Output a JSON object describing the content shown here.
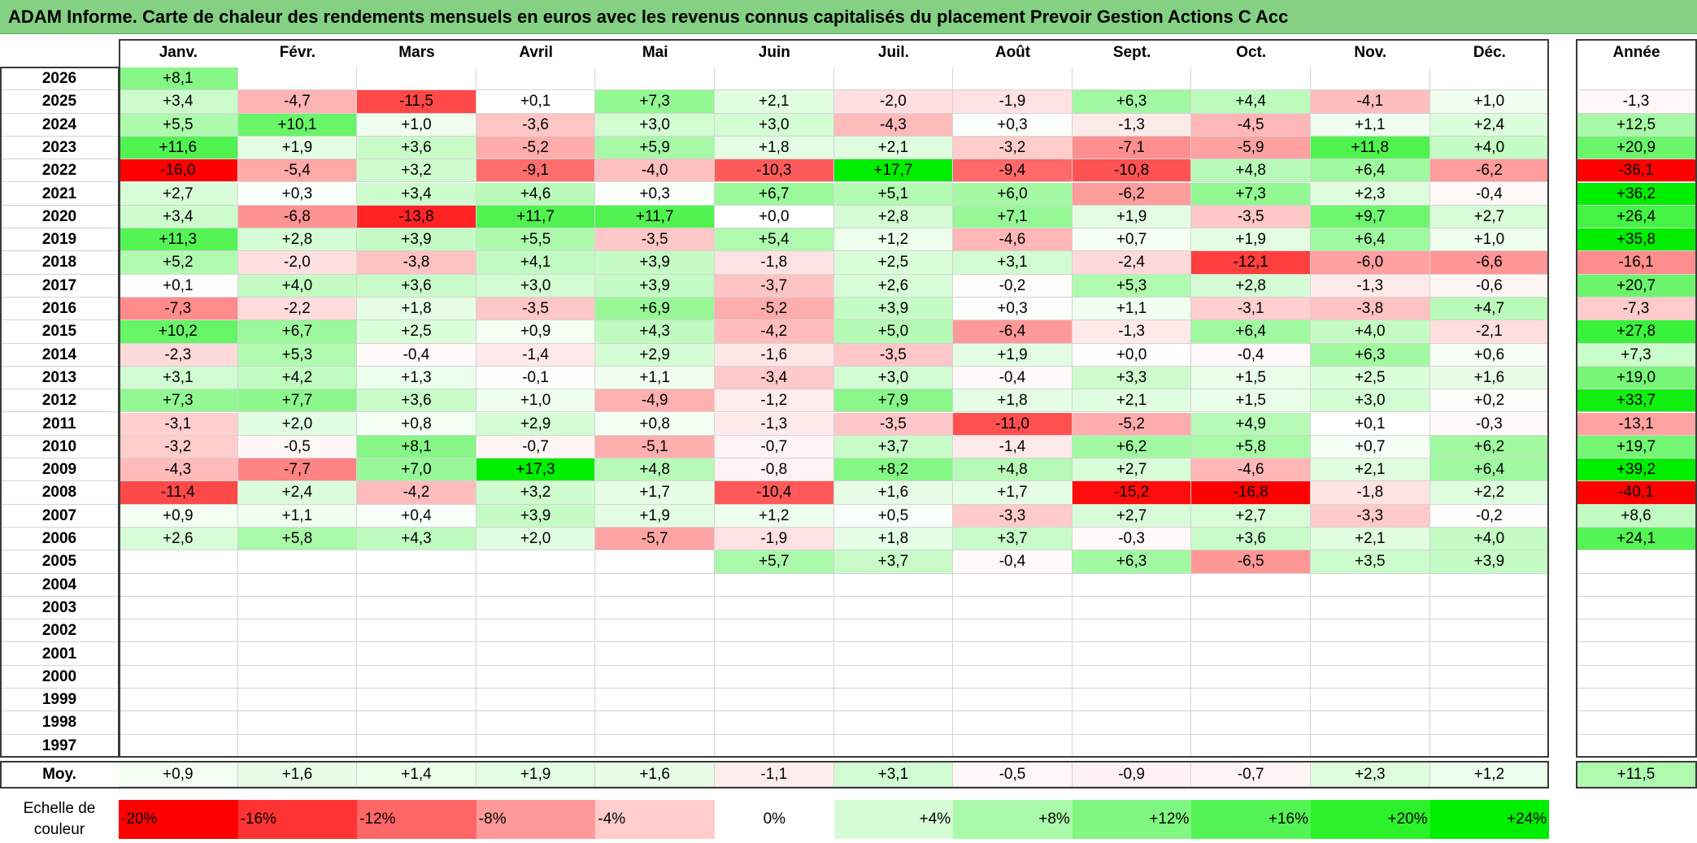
{
  "title": "ADAM Informe. Carte de chaleur des rendements mensuels en euros avec les revenus connus capitalisés du placement Prevoir Gestion Actions C Acc",
  "chart_data": {
    "type": "heatmap",
    "title": "ADAM Informe. Carte de chaleur des rendements mensuels en euros avec les revenus connus capitalisés du placement Prevoir Gestion Actions C Acc",
    "months": [
      "Janv.",
      "Févr.",
      "Mars",
      "Avril",
      "Mai",
      "Juin",
      "Juil.",
      "Août",
      "Sept.",
      "Oct.",
      "Nov.",
      "Déc."
    ],
    "year_header": "Année",
    "rows": [
      {
        "year": "2026",
        "values": [
          "+8,1",
          "",
          "",
          "",
          "",
          "",
          "",
          "",
          "",
          "",
          "",
          ""
        ],
        "annual": ""
      },
      {
        "year": "2025",
        "values": [
          "+3,4",
          "-4,7",
          "-11,5",
          "+0,1",
          "+7,3",
          "+2,1",
          "-2,0",
          "-1,9",
          "+6,3",
          "+4,4",
          "-4,1",
          "+1,0"
        ],
        "annual": "-1,3"
      },
      {
        "year": "2024",
        "values": [
          "+5,5",
          "+10,1",
          "+1,0",
          "-3,6",
          "+3,0",
          "+3,0",
          "-4,3",
          "+0,3",
          "-1,3",
          "-4,5",
          "+1,1",
          "+2,4"
        ],
        "annual": "+12,5"
      },
      {
        "year": "2023",
        "values": [
          "+11,6",
          "+1,9",
          "+3,6",
          "-5,2",
          "+5,9",
          "+1,8",
          "+2,1",
          "-3,2",
          "-7,1",
          "-5,9",
          "+11,8",
          "+4,0"
        ],
        "annual": "+20,9"
      },
      {
        "year": "2022",
        "values": [
          "-16,0",
          "-5,4",
          "+3,2",
          "-9,1",
          "-4,0",
          "-10,3",
          "+17,7",
          "-9,4",
          "-10,8",
          "+4,8",
          "+6,4",
          "-6,2"
        ],
        "annual": "-36,1"
      },
      {
        "year": "2021",
        "values": [
          "+2,7",
          "+0,3",
          "+3,4",
          "+4,6",
          "+0,3",
          "+6,7",
          "+5,1",
          "+6,0",
          "-6,2",
          "+7,3",
          "+2,3",
          "-0,4"
        ],
        "annual": "+36,2"
      },
      {
        "year": "2020",
        "values": [
          "+3,4",
          "-6,8",
          "-13,8",
          "+11,7",
          "+11,7",
          "+0,0",
          "+2,8",
          "+7,1",
          "+1,9",
          "-3,5",
          "+9,7",
          "+2,7"
        ],
        "annual": "+26,4"
      },
      {
        "year": "2019",
        "values": [
          "+11,3",
          "+2,8",
          "+3,9",
          "+5,5",
          "-3,5",
          "+5,4",
          "+1,2",
          "-4,6",
          "+0,7",
          "+1,9",
          "+6,4",
          "+1,0"
        ],
        "annual": "+35,8"
      },
      {
        "year": "2018",
        "values": [
          "+5,2",
          "-2,0",
          "-3,8",
          "+4,1",
          "+3,9",
          "-1,8",
          "+2,5",
          "+3,1",
          "-2,4",
          "-12,1",
          "-6,0",
          "-6,6"
        ],
        "annual": "-16,1"
      },
      {
        "year": "2017",
        "values": [
          "+0,1",
          "+4,0",
          "+3,6",
          "+3,0",
          "+3,9",
          "-3,7",
          "+2,6",
          "-0,2",
          "+5,3",
          "+2,8",
          "-1,3",
          "-0,6"
        ],
        "annual": "+20,7"
      },
      {
        "year": "2016",
        "values": [
          "-7,3",
          "-2,2",
          "+1,8",
          "-3,5",
          "+6,9",
          "-5,2",
          "+3,9",
          "+0,3",
          "+1,1",
          "-3,1",
          "-3,8",
          "+4,7"
        ],
        "annual": "-7,3"
      },
      {
        "year": "2015",
        "values": [
          "+10,2",
          "+6,7",
          "+2,5",
          "+0,9",
          "+4,3",
          "-4,2",
          "+5,0",
          "-6,4",
          "-1,3",
          "+6,4",
          "+4,0",
          "-2,1"
        ],
        "annual": "+27,8"
      },
      {
        "year": "2014",
        "values": [
          "-2,3",
          "+5,3",
          "-0,4",
          "-1,4",
          "+2,9",
          "-1,6",
          "-3,5",
          "+1,9",
          "+0,0",
          "-0,4",
          "+6,3",
          "+0,6"
        ],
        "annual": "+7,3"
      },
      {
        "year": "2013",
        "values": [
          "+3,1",
          "+4,2",
          "+1,3",
          "-0,1",
          "+1,1",
          "-3,4",
          "+3,0",
          "-0,4",
          "+3,3",
          "+1,5",
          "+2,5",
          "+1,6"
        ],
        "annual": "+19,0"
      },
      {
        "year": "2012",
        "values": [
          "+7,3",
          "+7,7",
          "+3,6",
          "+1,0",
          "-4,9",
          "-1,2",
          "+7,9",
          "+1,8",
          "+2,1",
          "+1,5",
          "+3,0",
          "+0,2"
        ],
        "annual": "+33,7"
      },
      {
        "year": "2011",
        "values": [
          "-3,1",
          "+2,0",
          "+0,8",
          "+2,9",
          "+0,8",
          "-1,3",
          "-3,5",
          "-11,0",
          "-5,2",
          "+4,9",
          "+0,1",
          "-0,3"
        ],
        "annual": "-13,1"
      },
      {
        "year": "2010",
        "values": [
          "-3,2",
          "-0,5",
          "+8,1",
          "-0,7",
          "-5,1",
          "-0,7",
          "+3,7",
          "-1,4",
          "+6,2",
          "+5,8",
          "+0,7",
          "+6,2"
        ],
        "annual": "+19,7"
      },
      {
        "year": "2009",
        "values": [
          "-4,3",
          "-7,7",
          "+7,0",
          "+17,3",
          "+4,8",
          "-0,8",
          "+8,2",
          "+4,8",
          "+2,7",
          "-4,6",
          "+2,1",
          "+6,4"
        ],
        "annual": "+39,2"
      },
      {
        "year": "2008",
        "values": [
          "-11,4",
          "+2,4",
          "-4,2",
          "+3,2",
          "+1,7",
          "-10,4",
          "+1,6",
          "+1,7",
          "-15,2",
          "-16,8",
          "-1,8",
          "+2,2"
        ],
        "annual": "-40,1"
      },
      {
        "year": "2007",
        "values": [
          "+0,9",
          "+1,1",
          "+0,4",
          "+3,9",
          "+1,9",
          "+1,2",
          "+0,5",
          "-3,3",
          "+2,7",
          "+2,7",
          "-3,3",
          "-0,2"
        ],
        "annual": "+8,6"
      },
      {
        "year": "2006",
        "values": [
          "+2,6",
          "+5,8",
          "+4,3",
          "+2,0",
          "-5,7",
          "-1,9",
          "+1,8",
          "+3,7",
          "-0,3",
          "+3,6",
          "+2,1",
          "+4,0"
        ],
        "annual": "+24,1"
      },
      {
        "year": "2005",
        "values": [
          "",
          "",
          "",
          "",
          "",
          "+5,7",
          "+3,7",
          "-0,4",
          "+6,3",
          "-6,5",
          "+3,5",
          "+3,9"
        ],
        "annual": ""
      },
      {
        "year": "2004",
        "values": [
          "",
          "",
          "",
          "",
          "",
          "",
          "",
          "",
          "",
          "",
          "",
          ""
        ],
        "annual": ""
      },
      {
        "year": "2003",
        "values": [
          "",
          "",
          "",
          "",
          "",
          "",
          "",
          "",
          "",
          "",
          "",
          ""
        ],
        "annual": ""
      },
      {
        "year": "2002",
        "values": [
          "",
          "",
          "",
          "",
          "",
          "",
          "",
          "",
          "",
          "",
          "",
          ""
        ],
        "annual": ""
      },
      {
        "year": "2001",
        "values": [
          "",
          "",
          "",
          "",
          "",
          "",
          "",
          "",
          "",
          "",
          "",
          ""
        ],
        "annual": ""
      },
      {
        "year": "2000",
        "values": [
          "",
          "",
          "",
          "",
          "",
          "",
          "",
          "",
          "",
          "",
          "",
          ""
        ],
        "annual": ""
      },
      {
        "year": "1999",
        "values": [
          "",
          "",
          "",
          "",
          "",
          "",
          "",
          "",
          "",
          "",
          "",
          ""
        ],
        "annual": ""
      },
      {
        "year": "1998",
        "values": [
          "",
          "",
          "",
          "",
          "",
          "",
          "",
          "",
          "",
          "",
          "",
          ""
        ],
        "annual": ""
      },
      {
        "year": "1997",
        "values": [
          "",
          "",
          "",
          "",
          "",
          "",
          "",
          "",
          "",
          "",
          "",
          ""
        ],
        "annual": ""
      }
    ],
    "average": {
      "label": "Moy.",
      "values": [
        "+0,9",
        "+1,6",
        "+1,4",
        "+1,9",
        "+1,6",
        "-1,1",
        "+3,1",
        "-0,5",
        "-0,9",
        "-0,7",
        "+2,3",
        "+1,2"
      ],
      "annual": "+11,5"
    },
    "color_scale": {
      "label": "Echelle de couleur",
      "stops": [
        "-20%",
        "-16%",
        "-12%",
        "-8%",
        "-4%",
        "0%",
        "+4%",
        "+8%",
        "+12%",
        "+16%",
        "+20%",
        "+24%"
      ]
    },
    "colors": {
      "negative": "#ff0000",
      "positive": "#00ee00",
      "neutral": "#ffffff",
      "title_bg": "#84d184"
    }
  }
}
